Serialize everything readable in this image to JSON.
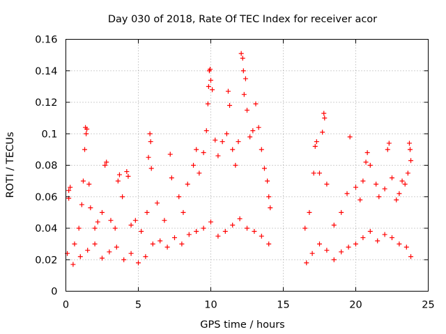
{
  "chart_data": {
    "type": "scatter",
    "title": "Day 030 of 2018, Rate Of TEC Index for receiver acor",
    "xlabel": "GPS time / hours",
    "ylabel": "ROTI / TECUs",
    "xlim": [
      0,
      25
    ],
    "ylim": [
      0,
      0.16
    ],
    "xticks": [
      0,
      5,
      10,
      15,
      20,
      25
    ],
    "yticks": [
      0,
      0.02,
      0.04,
      0.06,
      0.08,
      0.1,
      0.12,
      0.14,
      0.16
    ],
    "xtick_labels": [
      "0",
      "5",
      "10",
      "15",
      "20",
      "25"
    ],
    "ytick_labels": [
      "0",
      "0.02",
      "0.04",
      "0.06",
      "0.08",
      "0.1",
      "0.12",
      "0.14",
      "0.16"
    ],
    "grid": true,
    "marker": "+",
    "colors": {
      "series": "#ff0000",
      "axis": "#000000",
      "grid": "#a0a0a0"
    },
    "series": [
      {
        "name": "acor",
        "points": [
          [
            0.1,
            0.024
          ],
          [
            0.2,
            0.059
          ],
          [
            0.3,
            0.066
          ],
          [
            0.2,
            0.064
          ],
          [
            0.6,
            0.03
          ],
          [
            0.9,
            0.04
          ],
          [
            1.1,
            0.055
          ],
          [
            1.2,
            0.07
          ],
          [
            1.3,
            0.09
          ],
          [
            1.35,
            0.104
          ],
          [
            1.4,
            0.1
          ],
          [
            1.45,
            0.103
          ],
          [
            1.6,
            0.068
          ],
          [
            1.7,
            0.053
          ],
          [
            2.0,
            0.04
          ],
          [
            2.2,
            0.044
          ],
          [
            2.5,
            0.05
          ],
          [
            2.7,
            0.08
          ],
          [
            2.8,
            0.082
          ],
          [
            3.1,
            0.045
          ],
          [
            3.4,
            0.04
          ],
          [
            3.6,
            0.07
          ],
          [
            3.7,
            0.074
          ],
          [
            3.9,
            0.06
          ],
          [
            4.3,
            0.073
          ],
          [
            4.2,
            0.076
          ],
          [
            4.5,
            0.042
          ],
          [
            4.8,
            0.045
          ],
          [
            5.2,
            0.038
          ],
          [
            5.6,
            0.05
          ],
          [
            5.7,
            0.085
          ],
          [
            5.8,
            0.1
          ],
          [
            5.85,
            0.095
          ],
          [
            5.9,
            0.078
          ],
          [
            6.3,
            0.056
          ],
          [
            6.8,
            0.045
          ],
          [
            7.2,
            0.087
          ],
          [
            7.3,
            0.072
          ],
          [
            7.8,
            0.06
          ],
          [
            8.1,
            0.05
          ],
          [
            8.4,
            0.068
          ],
          [
            8.8,
            0.08
          ],
          [
            9.0,
            0.09
          ],
          [
            9.2,
            0.075
          ],
          [
            9.5,
            0.088
          ],
          [
            9.7,
            0.102
          ],
          [
            9.8,
            0.119
          ],
          [
            9.85,
            0.13
          ],
          [
            9.9,
            0.14
          ],
          [
            9.95,
            0.141
          ],
          [
            10.0,
            0.134
          ],
          [
            10.1,
            0.128
          ],
          [
            10.3,
            0.096
          ],
          [
            10.5,
            0.086
          ],
          [
            10.8,
            0.095
          ],
          [
            11.1,
            0.1
          ],
          [
            11.2,
            0.127
          ],
          [
            11.3,
            0.118
          ],
          [
            11.5,
            0.09
          ],
          [
            11.7,
            0.08
          ],
          [
            11.9,
            0.095
          ],
          [
            12.1,
            0.151
          ],
          [
            12.2,
            0.148
          ],
          [
            12.25,
            0.14
          ],
          [
            12.3,
            0.125
          ],
          [
            12.4,
            0.135
          ],
          [
            12.5,
            0.115
          ],
          [
            12.7,
            0.098
          ],
          [
            12.9,
            0.102
          ],
          [
            13.1,
            0.119
          ],
          [
            13.3,
            0.104
          ],
          [
            13.5,
            0.09
          ],
          [
            13.7,
            0.078
          ],
          [
            13.9,
            0.07
          ],
          [
            14.0,
            0.06
          ],
          [
            14.1,
            0.053
          ],
          [
            16.5,
            0.04
          ],
          [
            16.8,
            0.05
          ],
          [
            17.1,
            0.075
          ],
          [
            17.2,
            0.092
          ],
          [
            17.3,
            0.095
          ],
          [
            17.5,
            0.075
          ],
          [
            17.7,
            0.101
          ],
          [
            17.8,
            0.113
          ],
          [
            17.85,
            0.11
          ],
          [
            18.0,
            0.068
          ],
          [
            18.5,
            0.042
          ],
          [
            19.0,
            0.05
          ],
          [
            19.4,
            0.062
          ],
          [
            19.6,
            0.098
          ],
          [
            20.0,
            0.066
          ],
          [
            20.3,
            0.058
          ],
          [
            20.5,
            0.07
          ],
          [
            20.7,
            0.082
          ],
          [
            20.8,
            0.088
          ],
          [
            21.0,
            0.08
          ],
          [
            21.4,
            0.068
          ],
          [
            21.6,
            0.06
          ],
          [
            22.0,
            0.065
          ],
          [
            22.2,
            0.09
          ],
          [
            22.3,
            0.094
          ],
          [
            22.5,
            0.072
          ],
          [
            22.8,
            0.058
          ],
          [
            23.0,
            0.062
          ],
          [
            23.2,
            0.07
          ],
          [
            23.4,
            0.068
          ],
          [
            23.6,
            0.075
          ],
          [
            23.7,
            0.094
          ],
          [
            23.75,
            0.09
          ],
          [
            23.8,
            0.083
          ],
          [
            0.5,
            0.017
          ],
          [
            1.0,
            0.022
          ],
          [
            1.5,
            0.026
          ],
          [
            2.0,
            0.03
          ],
          [
            2.5,
            0.021
          ],
          [
            3.0,
            0.025
          ],
          [
            3.5,
            0.028
          ],
          [
            4.0,
            0.02
          ],
          [
            4.5,
            0.024
          ],
          [
            5.0,
            0.018
          ],
          [
            5.5,
            0.022
          ],
          [
            6.0,
            0.03
          ],
          [
            6.5,
            0.032
          ],
          [
            7.0,
            0.028
          ],
          [
            7.5,
            0.034
          ],
          [
            8.0,
            0.03
          ],
          [
            8.5,
            0.036
          ],
          [
            9.0,
            0.038
          ],
          [
            9.5,
            0.04
          ],
          [
            10.0,
            0.044
          ],
          [
            10.5,
            0.035
          ],
          [
            11.0,
            0.038
          ],
          [
            11.5,
            0.042
          ],
          [
            12.0,
            0.046
          ],
          [
            12.5,
            0.04
          ],
          [
            13.0,
            0.038
          ],
          [
            13.5,
            0.035
          ],
          [
            14.0,
            0.03
          ],
          [
            16.6,
            0.018
          ],
          [
            17.0,
            0.024
          ],
          [
            17.5,
            0.03
          ],
          [
            18.0,
            0.026
          ],
          [
            18.5,
            0.02
          ],
          [
            19.0,
            0.025
          ],
          [
            19.5,
            0.028
          ],
          [
            20.0,
            0.03
          ],
          [
            20.5,
            0.034
          ],
          [
            21.0,
            0.038
          ],
          [
            21.5,
            0.032
          ],
          [
            22.0,
            0.036
          ],
          [
            22.5,
            0.034
          ],
          [
            23.0,
            0.03
          ],
          [
            23.5,
            0.028
          ],
          [
            23.8,
            0.022
          ]
        ]
      }
    ]
  }
}
